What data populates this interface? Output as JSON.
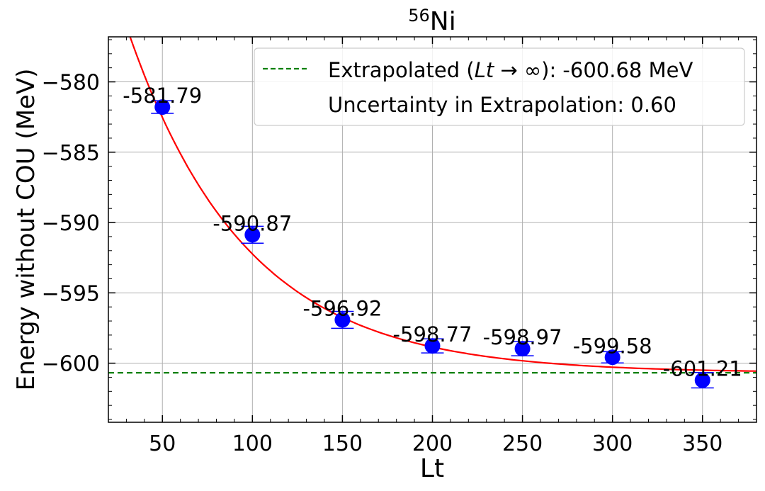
{
  "chart_data": {
    "type": "scatter",
    "title_sup": "56",
    "title_main": "Ni",
    "xlabel": "Lt",
    "ylabel": "Energy without COU (MeV)",
    "xlim": [
      20,
      380
    ],
    "ylim": [
      -604.2,
      -576.8
    ],
    "xticks": [
      50,
      100,
      150,
      200,
      250,
      300,
      350
    ],
    "yticks": [
      -600,
      -595,
      -590,
      -585,
      -580
    ],
    "grid": true,
    "points": [
      {
        "x": 50,
        "y": -581.79,
        "err": 0.45,
        "label": "-581.79"
      },
      {
        "x": 100,
        "y": -590.87,
        "err": 0.6,
        "label": "-590.87"
      },
      {
        "x": 150,
        "y": -596.92,
        "err": 0.6,
        "label": "-596.92"
      },
      {
        "x": 200,
        "y": -598.77,
        "err": 0.5,
        "label": "-598.77"
      },
      {
        "x": 250,
        "y": -598.97,
        "err": 0.5,
        "label": "-598.97"
      },
      {
        "x": 300,
        "y": -599.58,
        "err": 0.4,
        "label": "-599.58"
      },
      {
        "x": 350,
        "y": -601.21,
        "err": 0.55,
        "label": "-601.21"
      }
    ],
    "fit": {
      "asymptote": -600.68,
      "amplitude": 39.0,
      "decay": 0.0153
    },
    "extrapolated_value": -600.68,
    "legend_position": "top-right",
    "legend": {
      "extrapolated_prefix": "Extrapolated (",
      "extrapolated_math": "Lt",
      "extrapolated_arrow": " → ∞",
      "extrapolated_suffix": "): -600.68 MeV",
      "uncertainty": "Uncertainty in Extrapolation: 0.60"
    },
    "colors": {
      "points": "#0000ff",
      "fit": "#ff0000",
      "extrapolated": "#008000",
      "grid": "#b0b0b0"
    }
  }
}
